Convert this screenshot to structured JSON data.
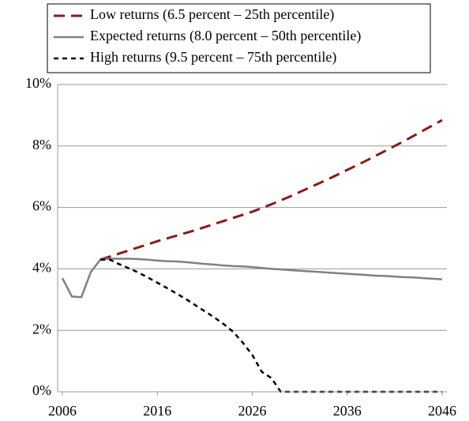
{
  "chart_data": {
    "type": "line",
    "x": [
      2006,
      2007,
      2008,
      2009,
      2010,
      2011,
      2012,
      2013,
      2014,
      2015,
      2016,
      2017,
      2018,
      2019,
      2020,
      2021,
      2022,
      2023,
      2024,
      2025,
      2026,
      2027,
      2028,
      2029,
      2030,
      2031,
      2032,
      2033,
      2034,
      2035,
      2036,
      2037,
      2038,
      2039,
      2040,
      2041,
      2042,
      2043,
      2044,
      2045,
      2046
    ],
    "series": [
      {
        "name": "Low returns (6.5 percent – 25th percentile)",
        "color": "#8b1a1a",
        "dash": "14,8",
        "width": 3,
        "values": [
          null,
          null,
          null,
          null,
          4.3,
          4.4,
          4.5,
          4.6,
          4.7,
          4.8,
          4.9,
          4.99,
          5.08,
          5.17,
          5.26,
          5.36,
          5.46,
          5.56,
          5.66,
          5.76,
          5.86,
          5.98,
          6.1,
          6.23,
          6.36,
          6.5,
          6.64,
          6.78,
          6.92,
          7.07,
          7.22,
          7.37,
          7.52,
          7.68,
          7.84,
          8.0,
          8.16,
          8.33,
          8.5,
          8.67,
          8.84
        ]
      },
      {
        "name": "Expected returns (8.0 percent – 50th percentile)",
        "color": "#808080",
        "dash": "",
        "width": 2.5,
        "values": [
          3.7,
          3.1,
          3.08,
          3.9,
          4.3,
          4.33,
          4.33,
          4.33,
          4.32,
          4.3,
          4.27,
          4.25,
          4.24,
          4.22,
          4.19,
          4.16,
          4.14,
          4.11,
          4.09,
          4.08,
          4.06,
          4.03,
          4.0,
          3.98,
          3.96,
          3.94,
          3.92,
          3.9,
          3.88,
          3.86,
          3.84,
          3.82,
          3.8,
          3.78,
          3.77,
          3.75,
          3.73,
          3.72,
          3.7,
          3.68,
          3.66
        ]
      },
      {
        "name": "High returns (9.5 percent – 75th percentile)",
        "color": "#000000",
        "dash": "6,5",
        "width": 2.5,
        "values": [
          null,
          null,
          null,
          null,
          4.3,
          4.3,
          4.15,
          4.02,
          3.88,
          3.72,
          3.55,
          3.38,
          3.2,
          3.02,
          2.82,
          2.62,
          2.42,
          2.2,
          1.95,
          1.6,
          1.2,
          0.65,
          0.45,
          0,
          0,
          0,
          0,
          0,
          0,
          0,
          0,
          0,
          0,
          0,
          0,
          0,
          0,
          0,
          0,
          0,
          0
        ]
      }
    ],
    "xlim": [
      2005.5,
      2046.5
    ],
    "xticks": [
      2006,
      2016,
      2026,
      2036,
      2046
    ],
    "ylim": [
      0,
      10
    ],
    "yticks": [
      {
        "value": 0,
        "label": "0%"
      },
      {
        "value": 2,
        "label": "2%"
      },
      {
        "value": 4,
        "label": "4%"
      },
      {
        "value": 6,
        "label": "6%"
      },
      {
        "value": 8,
        "label": "8%"
      },
      {
        "value": 10,
        "label": "10%"
      }
    ],
    "grid": true,
    "legend": "top"
  }
}
